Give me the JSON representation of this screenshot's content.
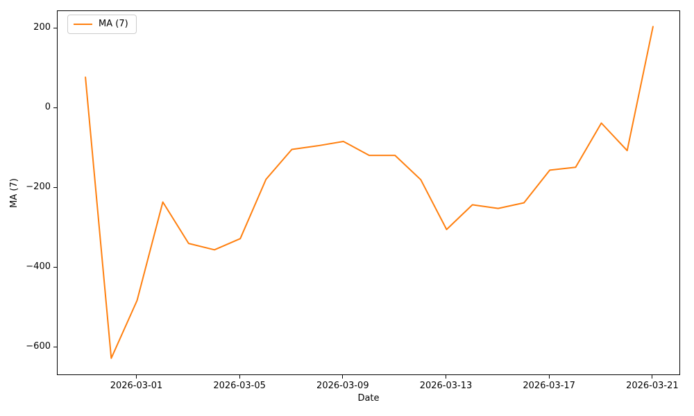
{
  "chart_data": {
    "type": "line",
    "title": "",
    "xlabel": "Date",
    "ylabel": "MA (7)",
    "grid": false,
    "legend_position": "upper left",
    "line_color": "#ff7f0e",
    "background_color": "#ffffff",
    "x": [
      "2026-02-27",
      "2026-02-28",
      "2026-03-01",
      "2026-03-02",
      "2026-03-03",
      "2026-03-04",
      "2026-03-05",
      "2026-03-06",
      "2026-03-07",
      "2026-03-08",
      "2026-03-09",
      "2026-03-10",
      "2026-03-11",
      "2026-03-12",
      "2026-03-13",
      "2026-03-14",
      "2026-03-15",
      "2026-03-16",
      "2026-03-17",
      "2026-03-18",
      "2026-03-19",
      "2026-03-20",
      "2026-03-21"
    ],
    "series": [
      {
        "name": "MA (7)",
        "color": "#ff7f0e",
        "values": [
          78,
          -627,
          -482,
          -235,
          -339,
          -355,
          -327,
          -178,
          -103,
          -94,
          -83,
          -118,
          -118,
          -179,
          -304,
          -242,
          -251,
          -237,
          -155,
          -148,
          -37,
          -106,
          205
        ]
      }
    ],
    "x_ticks": [
      "2026-03-01",
      "2026-03-05",
      "2026-03-09",
      "2026-03-13",
      "2026-03-17",
      "2026-03-21"
    ],
    "y_ticks": [
      200,
      0,
      -200,
      -400,
      -600
    ],
    "xlim_index": [
      -1.08,
      23.08
    ],
    "ylim": [
      -671,
      244
    ]
  }
}
